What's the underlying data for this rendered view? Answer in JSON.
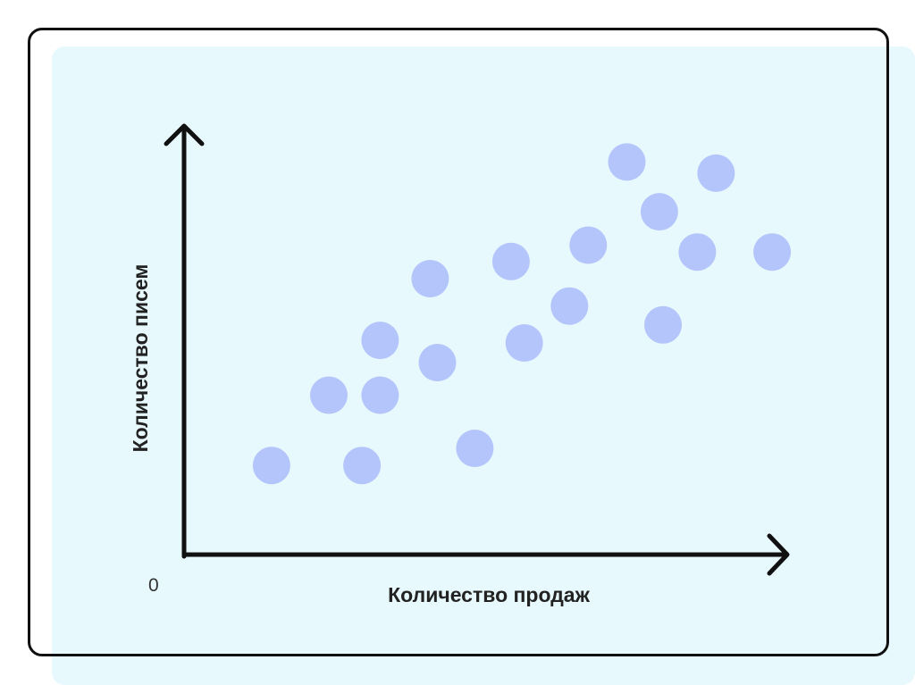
{
  "chart_data": {
    "type": "scatter",
    "xlabel": "Количество продаж",
    "ylabel": "Количество писем",
    "origin_label": "0",
    "xlim": [
      0,
      10
    ],
    "ylim": [
      0,
      10
    ],
    "grid": false,
    "point_color": "#b4c5fb",
    "axis_color": "#111111",
    "background_color": "#e7f9fc",
    "points": [
      {
        "x": 1.45,
        "y": 2.12
      },
      {
        "x": 2.4,
        "y": 3.76
      },
      {
        "x": 2.95,
        "y": 2.12
      },
      {
        "x": 3.25,
        "y": 3.76
      },
      {
        "x": 3.25,
        "y": 5.04
      },
      {
        "x": 4.08,
        "y": 6.48
      },
      {
        "x": 4.2,
        "y": 4.52
      },
      {
        "x": 4.82,
        "y": 2.52
      },
      {
        "x": 5.42,
        "y": 6.88
      },
      {
        "x": 5.64,
        "y": 4.98
      },
      {
        "x": 6.39,
        "y": 5.84
      },
      {
        "x": 6.7,
        "y": 7.26
      },
      {
        "x": 7.34,
        "y": 9.2
      },
      {
        "x": 7.88,
        "y": 8.04
      },
      {
        "x": 7.94,
        "y": 5.4
      },
      {
        "x": 8.51,
        "y": 7.1
      },
      {
        "x": 8.82,
        "y": 8.94
      },
      {
        "x": 9.75,
        "y": 7.1
      }
    ]
  }
}
